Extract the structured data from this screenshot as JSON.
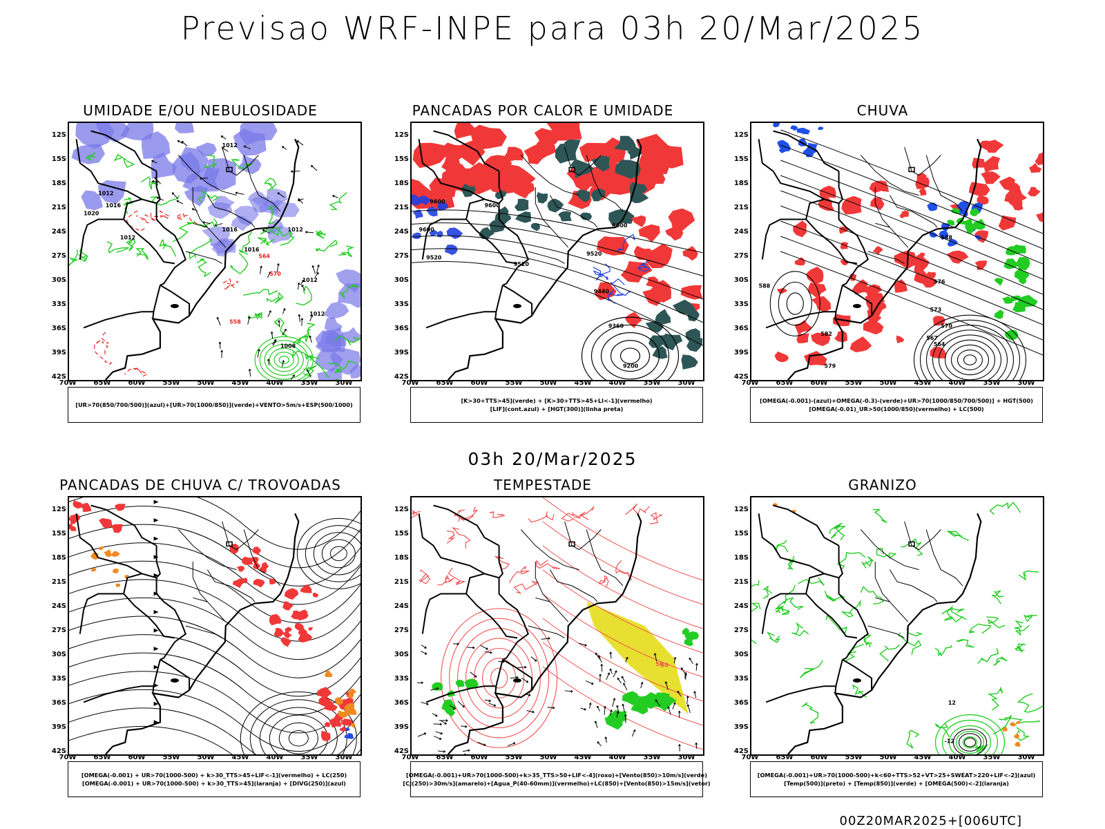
{
  "header": {
    "title": "Previsao WRF-INPE  para 03h 20/Mar/2025",
    "mid_title": "03h 20/Mar/2025",
    "footer": "00Z20MAR2025+[006UTC]"
  },
  "axes": {
    "lat_labels": [
      "12S",
      "15S",
      "18S",
      "21S",
      "24S",
      "27S",
      "30S",
      "33S",
      "36S",
      "39S",
      "42S"
    ],
    "lon_labels": [
      "70W",
      "65W",
      "60W",
      "55W",
      "50W",
      "45W",
      "40W",
      "35W",
      "30W"
    ]
  },
  "panels": [
    {
      "id": "umidade",
      "title": "UMIDADE E/OU NEBULOSIDADE",
      "legend": [
        "[UR>70(850/700/500)](azul)+[UR>70(1000/850)](verde)+VENTO>5m/s+ESP(500/1000)"
      ],
      "contour_labels": [
        "1012",
        "1012",
        "1016",
        "1020",
        "1012",
        "1016",
        "1016",
        "1012",
        "1012",
        "1012",
        "1008",
        "570",
        "564",
        "558"
      ],
      "colors": {
        "blue": "#7878e8",
        "green": "#22cc22",
        "red": "#e82020"
      }
    },
    {
      "id": "pancadas-calor",
      "title": "PANCADAS POR CALOR E UMIDADE",
      "legend": [
        "[K>30+TTS>45](verde) + [K>30+TTS>45+LI<-1](vermelho)",
        "[LIF](cont.azul) + [HGT(300)](linha preta)"
      ],
      "contour_labels": [
        "9600",
        "9600",
        "9600",
        "9600",
        "9520",
        "9520",
        "9520",
        "9440",
        "9360",
        "9200"
      ],
      "colors": {
        "red": "#f03838",
        "teal": "#2f5656",
        "blue": "#2040e0"
      }
    },
    {
      "id": "chuva",
      "title": "CHUVA",
      "legend": [
        "[OMEGA(-0.001)-(azul)+OMEGA(-0.3)-(verde)+UR>70(1000/850/700/500)] + HGT(500)",
        "[OMEGA(-0.01)_UR>50(1000/850)(vermelho) + LC(500)"
      ],
      "contour_labels": [
        "588",
        "582",
        "579",
        "576",
        "573",
        "570",
        "567",
        "564",
        "588"
      ],
      "colors": {
        "red": "#f03838",
        "blue": "#2050e8",
        "green": "#22cc22"
      }
    },
    {
      "id": "pancadas-trovoadas",
      "title": "PANCADAS DE CHUVA C/ TROVOADAS",
      "legend": [
        "[OMEGA(-0.001) + UR>70(1000-500) + k>30_TTS>45+LIF<-1](vermelho) + LC(250)",
        "[OMEGA(-0.001) + UR>70(1000-500) + k>30_TTS>45](laranja) + [DIVG(250)](azul)"
      ],
      "contour_labels": [],
      "colors": {
        "red": "#f03838",
        "orange": "#f08a20",
        "blue": "#2050e8"
      }
    },
    {
      "id": "tempestade",
      "title": "TEMPESTADE",
      "legend": [
        "[OMEGA(-0.001)+UR>70(1000-500)+k>35_TTS>50+LIF<-4](roxo)+[Vento(850)>10m/s](verde)",
        "[CJ(250)>30m/s](amarelo)+[Agua_P(40-60mm)](vermelho)+LC(850)+[Vento(850)>15m/s](vetor)"
      ],
      "contour_labels": [
        "50",
        "50"
      ],
      "colors": {
        "red": "#f05050",
        "yellow": "#e8e030",
        "green": "#22cc22"
      }
    },
    {
      "id": "granizo",
      "title": "GRANIZO",
      "legend": [
        "[OMEGA(-0.001)+UR>70(1000-500)+k<60+TTS>52+VT>25+SWEAT>220+LIF<-2](azul)",
        "[Temp(500)](preto) + [Temp(850)](verde) + [OMEGA(500)<-2](laranja)"
      ],
      "contour_labels": [
        "-12",
        "12"
      ],
      "colors": {
        "green": "#22cc22",
        "orange": "#f08a20",
        "black": "#000000"
      }
    }
  ]
}
